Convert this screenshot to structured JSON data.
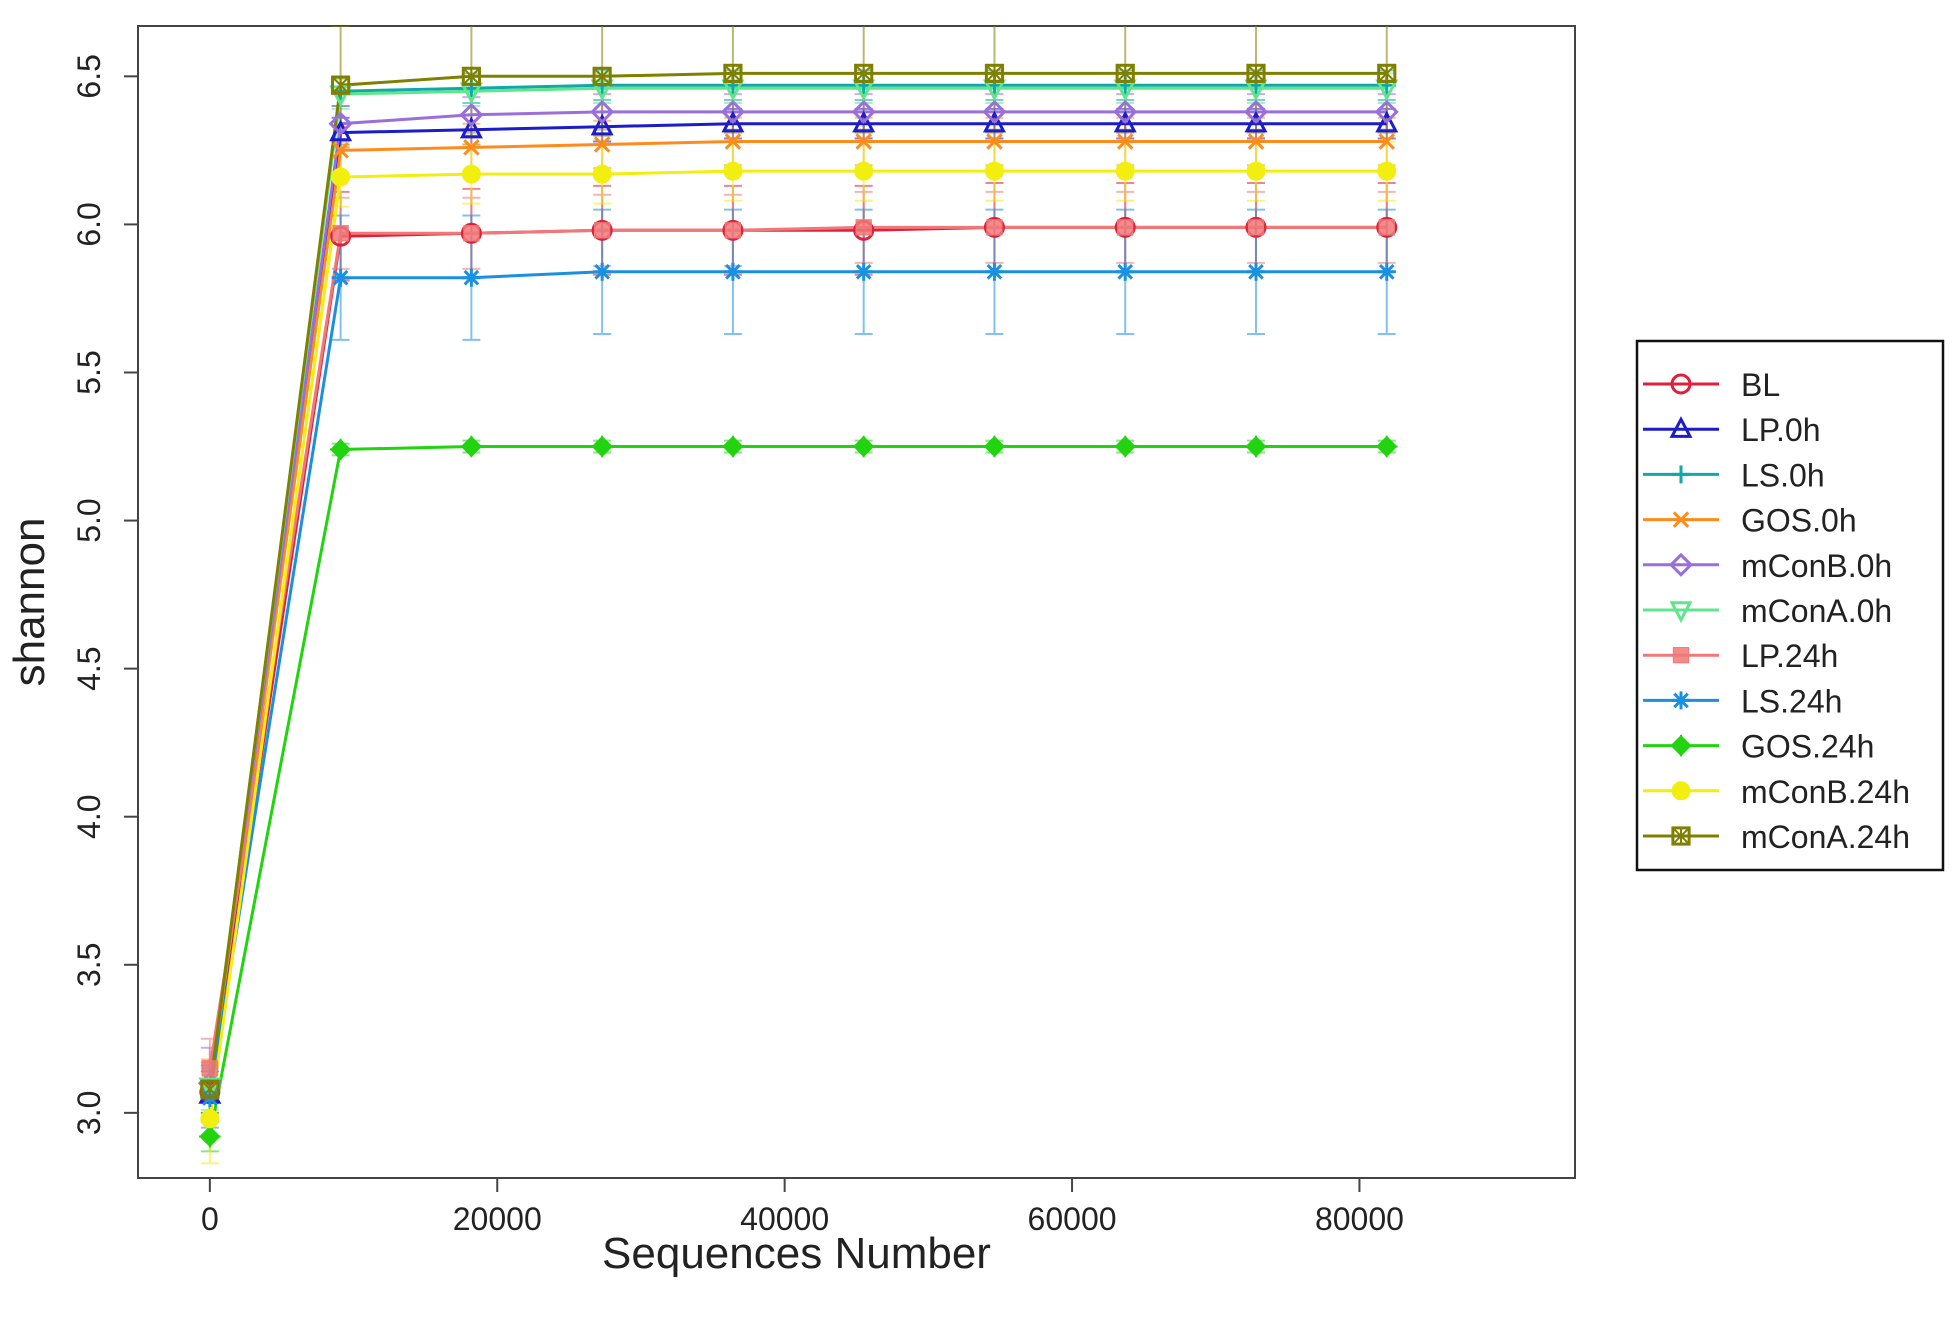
{
  "chart_data": {
    "type": "line",
    "xlabel": "Sequences Number",
    "ylabel": "shannon",
    "xlim": [
      -5000,
      95000
    ],
    "ylim": [
      2.78,
      6.67
    ],
    "x_ticks": [
      0,
      20000,
      40000,
      60000,
      80000
    ],
    "x_tick_labels": [
      "0",
      "20000",
      "40000",
      "60000",
      "80000"
    ],
    "y_ticks": [
      3.0,
      3.5,
      4.0,
      4.5,
      5.0,
      5.5,
      6.0,
      6.5
    ],
    "y_tick_labels": [
      "3.0",
      "3.5",
      "4.0",
      "4.5",
      "5.0",
      "5.5",
      "6.0",
      "6.5"
    ],
    "grid": false,
    "legend_position": "right",
    "x": [
      0,
      9100,
      18200,
      27300,
      36400,
      45500,
      54600,
      63700,
      72800,
      81900
    ],
    "series": [
      {
        "name": "BL",
        "color": "#e0203a",
        "marker": "circle",
        "values": [
          3.07,
          5.96,
          5.97,
          5.98,
          5.98,
          5.98,
          5.99,
          5.99,
          5.99,
          5.99
        ],
        "errors": [
          0.1,
          0.15,
          0.15,
          0.15,
          0.15,
          0.15,
          0.15,
          0.15,
          0.15,
          0.15
        ]
      },
      {
        "name": "LP.0h",
        "color": "#1c1cc8",
        "marker": "triangle-up",
        "values": [
          3.06,
          6.31,
          6.32,
          6.33,
          6.34,
          6.34,
          6.34,
          6.34,
          6.34,
          6.34
        ],
        "errors": [
          0.08,
          0.05,
          0.05,
          0.05,
          0.05,
          0.05,
          0.05,
          0.05,
          0.05,
          0.05
        ]
      },
      {
        "name": "LS.0h",
        "color": "#10a8a8",
        "marker": "plus",
        "values": [
          3.08,
          6.45,
          6.46,
          6.47,
          6.47,
          6.47,
          6.47,
          6.47,
          6.47,
          6.47
        ],
        "errors": [
          0.08,
          0.05,
          0.05,
          0.05,
          0.05,
          0.05,
          0.05,
          0.05,
          0.05,
          0.05
        ]
      },
      {
        "name": "GOS.0h",
        "color": "#ff8c1a",
        "marker": "cross",
        "values": [
          3.08,
          6.25,
          6.26,
          6.27,
          6.28,
          6.28,
          6.28,
          6.28,
          6.28,
          6.28
        ],
        "errors": [
          0.1,
          0.08,
          0.08,
          0.08,
          0.08,
          0.08,
          0.08,
          0.08,
          0.08,
          0.08
        ]
      },
      {
        "name": "mConB.0h",
        "color": "#9a6fdc",
        "marker": "diamond",
        "values": [
          3.1,
          6.34,
          6.37,
          6.38,
          6.38,
          6.38,
          6.38,
          6.38,
          6.38,
          6.38
        ],
        "errors": [
          0.12,
          0.06,
          0.06,
          0.06,
          0.06,
          0.06,
          0.06,
          0.06,
          0.06,
          0.06
        ]
      },
      {
        "name": "mConA.0h",
        "color": "#5fe68c",
        "marker": "triangle-down",
        "values": [
          3.09,
          6.44,
          6.45,
          6.46,
          6.46,
          6.46,
          6.46,
          6.46,
          6.46,
          6.46
        ],
        "errors": [
          0.08,
          0.05,
          0.05,
          0.05,
          0.05,
          0.05,
          0.05,
          0.05,
          0.05,
          0.05
        ]
      },
      {
        "name": "LP.24h",
        "color": "#f07878",
        "marker": "square",
        "values": [
          3.15,
          5.97,
          5.97,
          5.98,
          5.98,
          5.99,
          5.99,
          5.99,
          5.99,
          5.99
        ],
        "errors": [
          0.1,
          0.12,
          0.12,
          0.12,
          0.12,
          0.12,
          0.12,
          0.12,
          0.12,
          0.12
        ]
      },
      {
        "name": "LS.24h",
        "color": "#1a90e0",
        "marker": "asterisk",
        "values": [
          3.05,
          5.82,
          5.82,
          5.84,
          5.84,
          5.84,
          5.84,
          5.84,
          5.84,
          5.84
        ],
        "errors": [
          0.1,
          0.21,
          0.21,
          0.21,
          0.21,
          0.21,
          0.21,
          0.21,
          0.21,
          0.21
        ]
      },
      {
        "name": "GOS.24h",
        "color": "#22d40f",
        "marker": "diamond-filled",
        "values": [
          2.92,
          5.24,
          5.25,
          5.25,
          5.25,
          5.25,
          5.25,
          5.25,
          5.25,
          5.25
        ],
        "errors": [
          0.05,
          0.02,
          0.02,
          0.02,
          0.02,
          0.02,
          0.02,
          0.02,
          0.02,
          0.02
        ]
      },
      {
        "name": "mConB.24h",
        "color": "#f2ee10",
        "marker": "circle-filled",
        "values": [
          2.98,
          6.16,
          6.17,
          6.17,
          6.18,
          6.18,
          6.18,
          6.18,
          6.18,
          6.18
        ],
        "errors": [
          0.15,
          0.1,
          0.1,
          0.1,
          0.1,
          0.1,
          0.1,
          0.1,
          0.1,
          0.1
        ]
      },
      {
        "name": "mConA.24h",
        "color": "#808000",
        "marker": "star-box",
        "values": [
          3.08,
          6.47,
          6.5,
          6.5,
          6.51,
          6.51,
          6.51,
          6.51,
          6.51,
          6.51
        ],
        "errors": [
          0.08,
          0.2,
          0.2,
          0.2,
          0.2,
          0.2,
          0.2,
          0.2,
          0.2,
          0.2
        ]
      }
    ]
  }
}
